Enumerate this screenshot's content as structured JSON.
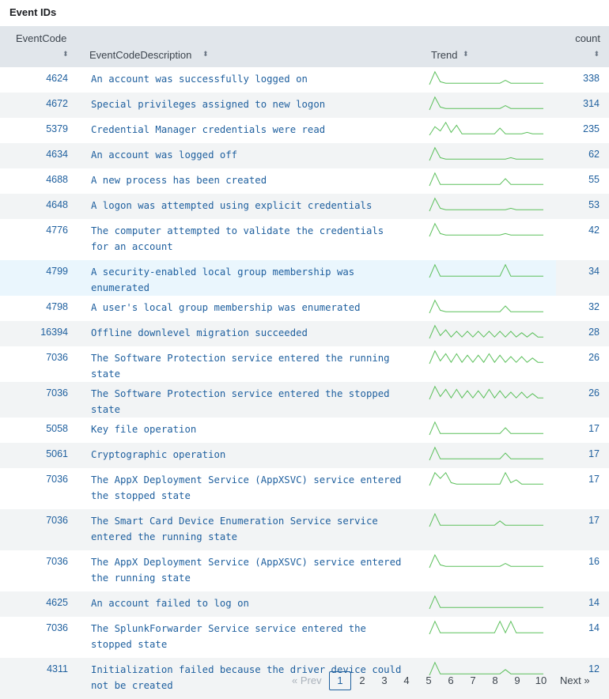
{
  "panel": {
    "title": "Event IDs"
  },
  "columns": {
    "code": "EventCode",
    "desc": "EventCodeDescription",
    "trend": "Trend",
    "count": "count",
    "sort_icon": "⬍"
  },
  "rows": [
    {
      "code": "4624",
      "desc": "An account was successfully logged on",
      "count": "338",
      "spark": [
        0,
        9,
        2,
        1,
        1,
        1,
        1,
        1,
        1,
        1,
        1,
        1,
        1,
        1,
        3,
        1,
        1,
        1,
        1,
        1,
        1,
        1
      ]
    },
    {
      "code": "4672",
      "desc": "Special privileges assigned to new logon",
      "count": "314",
      "spark": [
        0,
        9,
        2,
        1,
        1,
        1,
        1,
        1,
        1,
        1,
        1,
        1,
        1,
        1,
        3,
        1,
        1,
        1,
        1,
        1,
        1,
        1
      ]
    },
    {
      "code": "5379",
      "desc": "Credential Manager credentials were read",
      "count": "235",
      "spark": [
        0,
        6,
        3,
        9,
        2,
        7,
        1,
        1,
        1,
        1,
        1,
        1,
        1,
        5,
        1,
        1,
        1,
        1,
        2,
        1,
        1,
        1
      ]
    },
    {
      "code": "4634",
      "desc": "An account was logged off",
      "count": "62",
      "spark": [
        0,
        9,
        2,
        1,
        1,
        1,
        1,
        1,
        1,
        1,
        1,
        1,
        1,
        1,
        1,
        2,
        1,
        1,
        1,
        1,
        1,
        1
      ]
    },
    {
      "code": "4688",
      "desc": "A new process has been created",
      "count": "55",
      "spark": [
        0,
        9,
        1,
        1,
        1,
        1,
        1,
        1,
        1,
        1,
        1,
        1,
        1,
        1,
        5,
        1,
        1,
        1,
        1,
        1,
        1,
        1
      ]
    },
    {
      "code": "4648",
      "desc": "A logon was attempted using explicit credentials",
      "count": "53",
      "spark": [
        0,
        9,
        2,
        1,
        1,
        1,
        1,
        1,
        1,
        1,
        1,
        1,
        1,
        1,
        1,
        2,
        1,
        1,
        1,
        1,
        1,
        1
      ]
    },
    {
      "code": "4776",
      "desc": "The computer attempted to validate the credentials for an account",
      "count": "42",
      "spark": [
        0,
        9,
        2,
        1,
        1,
        1,
        1,
        1,
        1,
        1,
        1,
        1,
        1,
        1,
        2,
        1,
        1,
        1,
        1,
        1,
        1,
        1
      ]
    },
    {
      "code": "4799",
      "desc": "A security-enabled local group membership was enumerated",
      "count": "34",
      "spark": [
        0,
        9,
        1,
        1,
        1,
        1,
        1,
        1,
        1,
        1,
        1,
        1,
        1,
        1,
        9,
        1,
        1,
        1,
        1,
        1,
        1,
        1
      ]
    },
    {
      "code": "4798",
      "desc": "A user's local group membership was enumerated",
      "count": "32",
      "spark": [
        0,
        9,
        2,
        1,
        1,
        1,
        1,
        1,
        1,
        1,
        1,
        1,
        1,
        1,
        5,
        1,
        1,
        1,
        1,
        1,
        1,
        1
      ]
    },
    {
      "code": "16394",
      "desc": "Offline downlevel migration succeeded",
      "count": "28",
      "spark": [
        0,
        9,
        2,
        6,
        1,
        5,
        1,
        5,
        1,
        5,
        1,
        5,
        1,
        5,
        1,
        5,
        1,
        4,
        1,
        4,
        1,
        1
      ]
    },
    {
      "code": "7036",
      "desc": "The Software Protection service entered the running state",
      "count": "26",
      "spark": [
        0,
        9,
        2,
        7,
        1,
        7,
        1,
        6,
        1,
        6,
        1,
        7,
        1,
        6,
        1,
        5,
        1,
        5,
        1,
        4,
        1,
        1
      ]
    },
    {
      "code": "7036",
      "desc": "The Software Protection service entered the stopped state",
      "count": "26",
      "spark": [
        0,
        9,
        2,
        7,
        1,
        7,
        1,
        6,
        1,
        6,
        1,
        7,
        1,
        6,
        1,
        5,
        1,
        5,
        1,
        4,
        1,
        1
      ]
    },
    {
      "code": "5058",
      "desc": "Key file operation",
      "count": "17",
      "spark": [
        0,
        9,
        1,
        1,
        1,
        1,
        1,
        1,
        1,
        1,
        1,
        1,
        1,
        1,
        5,
        1,
        1,
        1,
        1,
        1,
        1,
        1
      ]
    },
    {
      "code": "5061",
      "desc": "Cryptographic operation",
      "count": "17",
      "spark": [
        0,
        9,
        1,
        1,
        1,
        1,
        1,
        1,
        1,
        1,
        1,
        1,
        1,
        1,
        5,
        1,
        1,
        1,
        1,
        1,
        1,
        1
      ]
    },
    {
      "code": "7036",
      "desc": "The AppX Deployment Service (AppXSVC) service entered the stopped state",
      "count": "17",
      "spark": [
        0,
        9,
        5,
        9,
        2,
        1,
        1,
        1,
        1,
        1,
        1,
        1,
        1,
        1,
        9,
        2,
        4,
        1,
        1,
        1,
        1,
        1
      ]
    },
    {
      "code": "7036",
      "desc": "The Smart Card Device Enumeration Service service entered the running state",
      "count": "17",
      "spark": [
        0,
        9,
        1,
        1,
        1,
        1,
        1,
        1,
        1,
        1,
        1,
        1,
        1,
        4,
        1,
        1,
        1,
        1,
        1,
        1,
        1,
        1
      ]
    },
    {
      "code": "7036",
      "desc": "The AppX Deployment Service (AppXSVC) service entered the running state",
      "count": "16",
      "spark": [
        0,
        9,
        2,
        1,
        1,
        1,
        1,
        1,
        1,
        1,
        1,
        1,
        1,
        1,
        3,
        1,
        1,
        1,
        1,
        1,
        1,
        1
      ]
    },
    {
      "code": "4625",
      "desc": "An account failed to log on",
      "count": "14",
      "spark": [
        0,
        9,
        1,
        1,
        1,
        1,
        1,
        1,
        1,
        1,
        1,
        1,
        1,
        1,
        1,
        1,
        1,
        1,
        1,
        1,
        1,
        1
      ]
    },
    {
      "code": "7036",
      "desc": "The SplunkForwarder Service service entered the stopped state",
      "count": "14",
      "spark": [
        0,
        9,
        1,
        1,
        1,
        1,
        1,
        1,
        1,
        1,
        1,
        1,
        1,
        9,
        1,
        9,
        1,
        1,
        1,
        1,
        1,
        1
      ]
    },
    {
      "code": "4311",
      "desc": "Initialization failed because the driver device could not be created",
      "count": "12",
      "spark": [
        0,
        9,
        1,
        1,
        1,
        1,
        1,
        1,
        1,
        1,
        1,
        1,
        1,
        1,
        4,
        1,
        1,
        1,
        1,
        1,
        1,
        1
      ]
    }
  ],
  "pager": {
    "prev": "« Prev",
    "next": "Next »",
    "pages": [
      "1",
      "2",
      "3",
      "4",
      "5",
      "6",
      "7",
      "8",
      "9",
      "10"
    ],
    "current": "1"
  },
  "colors": {
    "spark": "#5cc05c",
    "link": "#1e5f9e",
    "header_bg": "#e1e6eb",
    "stripe": "#f2f4f5",
    "hover": "#eaf6fd"
  }
}
